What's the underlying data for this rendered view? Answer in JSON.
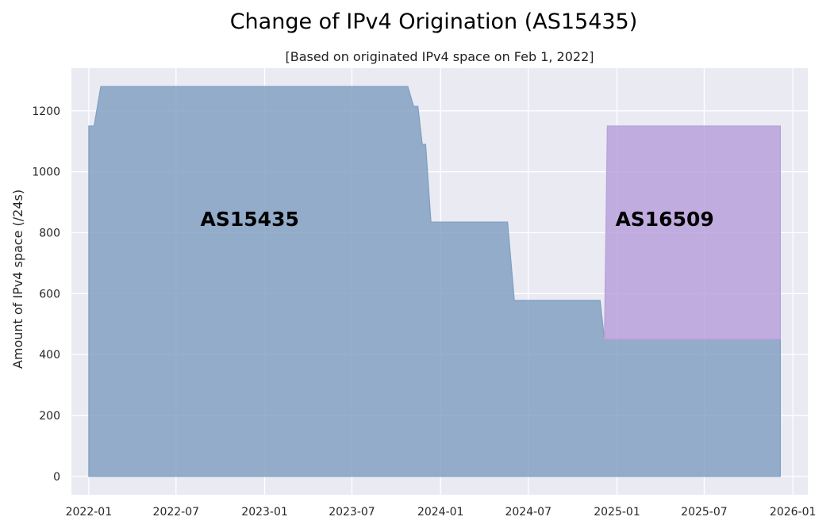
{
  "chart_data": {
    "type": "area",
    "title": "Change of IPv4 Origination (AS15435)",
    "subtitle": "[Based on originated IPv4 space on Feb 1, 2022]",
    "xlabel": "",
    "ylabel": "Amount of IPv4 space (/24s)",
    "x_ticks": [
      "2022-01",
      "2022-07",
      "2023-01",
      "2023-07",
      "2024-01",
      "2024-07",
      "2025-01",
      "2025-07",
      "2026-01"
    ],
    "y_ticks": [
      0,
      200,
      400,
      600,
      800,
      1000,
      1200
    ],
    "xlim": [
      "2021-11-26",
      "2026-02-01"
    ],
    "ylim": [
      -60,
      1340
    ],
    "grid": true,
    "stacked": true,
    "series": [
      {
        "name": "AS15435",
        "color": "#7f9fc1",
        "points": [
          [
            "2022-01-01",
            0
          ],
          [
            "2022-01-01",
            1150
          ],
          [
            "2022-01-12",
            1150
          ],
          [
            "2022-01-26",
            1280
          ],
          [
            "2023-10-25",
            1280
          ],
          [
            "2023-11-06",
            1215
          ],
          [
            "2023-11-15",
            1215
          ],
          [
            "2023-11-24",
            1090
          ],
          [
            "2023-12-01",
            1090
          ],
          [
            "2023-12-12",
            835
          ],
          [
            "2024-05-19",
            835
          ],
          [
            "2024-06-02",
            578
          ],
          [
            "2024-11-27",
            578
          ],
          [
            "2024-12-06",
            450
          ],
          [
            "2025-12-06",
            450
          ],
          [
            "2025-12-06",
            0
          ]
        ]
      },
      {
        "name": "AS16509",
        "color": "#b79fdb",
        "points": [
          [
            "2024-12-06",
            0
          ],
          [
            "2024-12-12",
            700
          ],
          [
            "2025-12-06",
            700
          ]
        ]
      }
    ],
    "annotations": [
      {
        "text": "AS15435",
        "x": "2022-12-01",
        "y": 845
      },
      {
        "text": "AS16509",
        "x": "2025-04-10",
        "y": 845
      }
    ]
  }
}
